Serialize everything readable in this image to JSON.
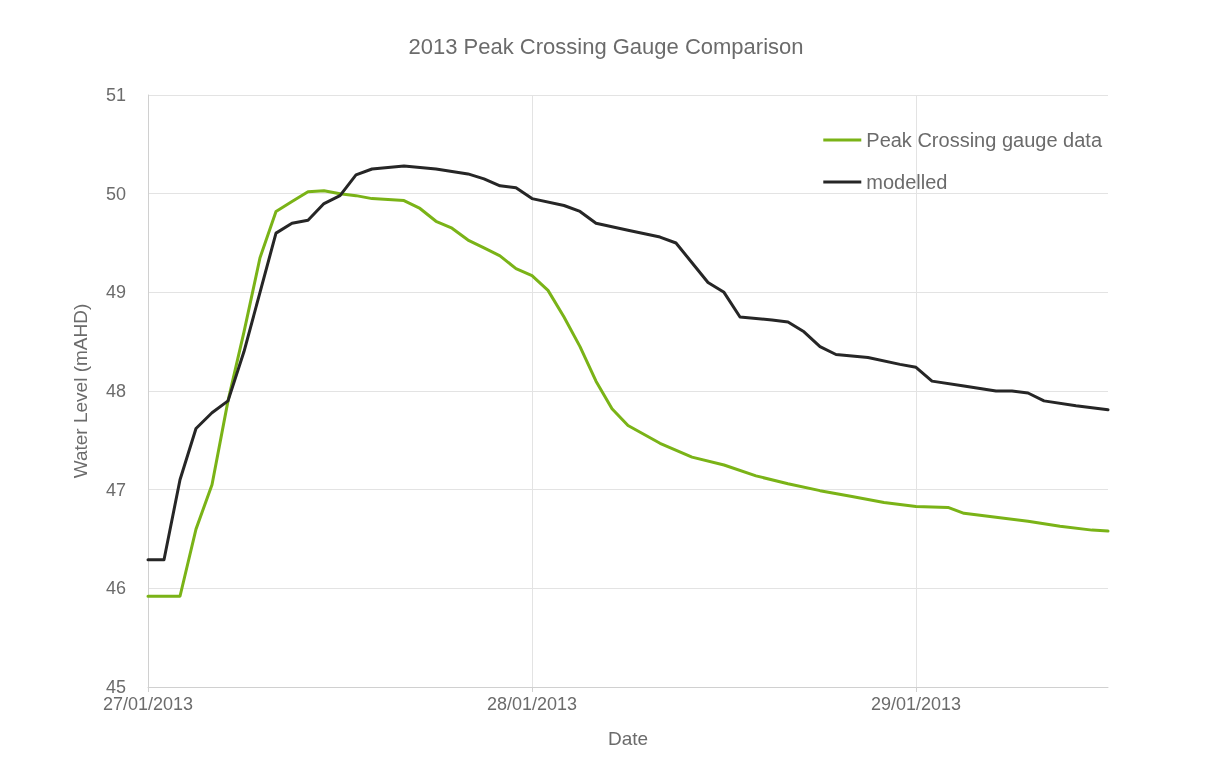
{
  "chart_data": {
    "type": "line",
    "title": "2013 Peak Crossing Gauge Comparison",
    "xlabel": "Date",
    "ylabel": "Water Level (mAHD)",
    "xlim": [
      "2013-01-27T00:00",
      "2013-01-29T12:00"
    ],
    "xticks": [
      {
        "value": "2013-01-27T00:00",
        "label": "27/01/2013"
      },
      {
        "value": "2013-01-28T00:00",
        "label": "28/01/2013"
      },
      {
        "value": "2013-01-29T00:00",
        "label": "29/01/2013"
      }
    ],
    "ylim": [
      45,
      51
    ],
    "yticks": [
      45,
      46,
      47,
      48,
      49,
      50,
      51
    ],
    "grid": true,
    "legend": "top right",
    "marker": "none",
    "line_style": "solid",
    "series": [
      {
        "name": "Peak Crossing gauge data",
        "color": "#7ab317",
        "x": [
          "2013-01-27T00:00",
          "2013-01-27T02:00",
          "2013-01-27T03:00",
          "2013-01-27T04:00",
          "2013-01-27T05:00",
          "2013-01-27T06:00",
          "2013-01-27T07:00",
          "2013-01-27T08:00",
          "2013-01-27T09:00",
          "2013-01-27T10:00",
          "2013-01-27T11:00",
          "2013-01-27T12:00",
          "2013-01-27T13:00",
          "2013-01-27T14:00",
          "2013-01-27T16:00",
          "2013-01-27T17:00",
          "2013-01-27T18:00",
          "2013-01-27T19:00",
          "2013-01-27T20:00",
          "2013-01-27T21:00",
          "2013-01-27T22:00",
          "2013-01-27T23:00",
          "2013-01-28T00:00",
          "2013-01-28T01:00",
          "2013-01-28T02:00",
          "2013-01-28T03:00",
          "2013-01-28T04:00",
          "2013-01-28T05:00",
          "2013-01-28T06:00",
          "2013-01-28T08:00",
          "2013-01-28T10:00",
          "2013-01-28T12:00",
          "2013-01-28T14:00",
          "2013-01-28T16:00",
          "2013-01-28T18:00",
          "2013-01-28T20:00",
          "2013-01-28T22:00",
          "2013-01-29T00:00",
          "2013-01-29T02:00",
          "2013-01-29T03:00",
          "2013-01-29T05:00",
          "2013-01-29T07:00",
          "2013-01-29T09:00",
          "2013-01-29T11:00",
          "2013-01-29T12:00"
        ],
        "values": [
          45.92,
          45.92,
          46.6,
          47.05,
          47.9,
          48.6,
          49.35,
          49.82,
          49.92,
          50.02,
          50.03,
          50.0,
          49.98,
          49.95,
          49.93,
          49.85,
          49.72,
          49.65,
          49.53,
          49.45,
          49.37,
          49.24,
          49.17,
          49.02,
          48.75,
          48.45,
          48.1,
          47.82,
          47.65,
          47.47,
          47.33,
          47.25,
          47.14,
          47.06,
          46.99,
          46.93,
          46.87,
          46.83,
          46.82,
          46.76,
          46.72,
          46.68,
          46.63,
          46.59,
          46.58
        ]
      },
      {
        "name": "modelled",
        "color": "#262626",
        "x": [
          "2013-01-27T00:00",
          "2013-01-27T01:00",
          "2013-01-27T02:00",
          "2013-01-27T03:00",
          "2013-01-27T04:00",
          "2013-01-27T05:00",
          "2013-01-27T06:00",
          "2013-01-27T07:00",
          "2013-01-27T08:00",
          "2013-01-27T09:00",
          "2013-01-27T10:00",
          "2013-01-27T11:00",
          "2013-01-27T12:00",
          "2013-01-27T13:00",
          "2013-01-27T14:00",
          "2013-01-27T16:00",
          "2013-01-27T18:00",
          "2013-01-27T20:00",
          "2013-01-27T21:00",
          "2013-01-27T22:00",
          "2013-01-27T23:00",
          "2013-01-28T00:00",
          "2013-01-28T02:00",
          "2013-01-28T03:00",
          "2013-01-28T04:00",
          "2013-01-28T06:00",
          "2013-01-28T08:00",
          "2013-01-28T09:00",
          "2013-01-28T10:00",
          "2013-01-28T11:00",
          "2013-01-28T12:00",
          "2013-01-28T13:00",
          "2013-01-28T15:00",
          "2013-01-28T16:00",
          "2013-01-28T17:00",
          "2013-01-28T18:00",
          "2013-01-28T19:00",
          "2013-01-28T21:00",
          "2013-01-28T23:00",
          "2013-01-29T00:00",
          "2013-01-29T01:00",
          "2013-01-29T03:00",
          "2013-01-29T05:00",
          "2013-01-29T06:00",
          "2013-01-29T07:00",
          "2013-01-29T08:00",
          "2013-01-29T10:00",
          "2013-01-29T12:00"
        ],
        "values": [
          46.29,
          46.29,
          47.1,
          47.62,
          47.78,
          47.9,
          48.4,
          49.0,
          49.6,
          49.7,
          49.73,
          49.9,
          49.98,
          50.19,
          50.25,
          50.28,
          50.25,
          50.2,
          50.15,
          50.08,
          50.06,
          49.95,
          49.88,
          49.82,
          49.7,
          49.63,
          49.56,
          49.5,
          49.3,
          49.1,
          49.0,
          48.75,
          48.72,
          48.7,
          48.6,
          48.45,
          48.37,
          48.34,
          48.27,
          48.24,
          48.1,
          48.05,
          48.0,
          48.0,
          47.98,
          47.9,
          47.85,
          47.81
        ]
      }
    ]
  }
}
